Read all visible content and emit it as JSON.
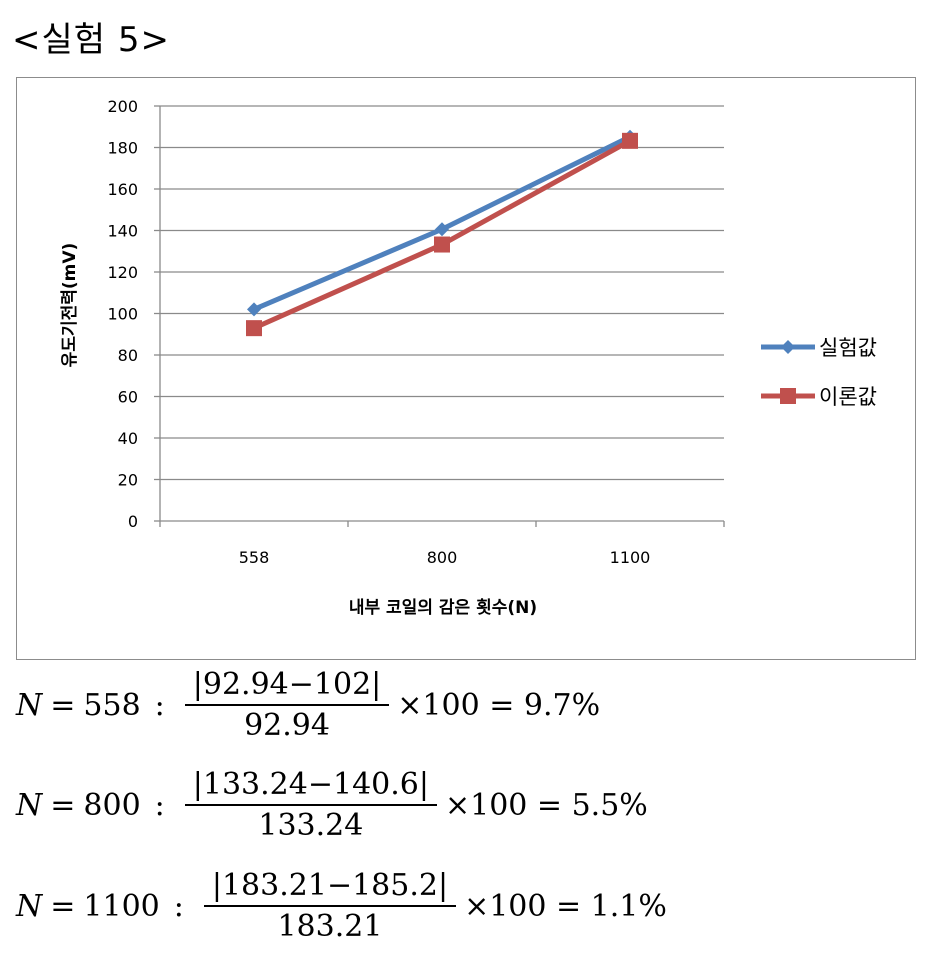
{
  "heading": "<실험 5>",
  "chart_data": {
    "type": "line",
    "categories": [
      "558",
      "800",
      "1100"
    ],
    "ylim": [
      0,
      200
    ],
    "yticks": [
      0,
      20,
      40,
      60,
      80,
      100,
      120,
      140,
      160,
      180,
      200
    ],
    "ylabel": "유도기전력(mV)",
    "xlabel": "내부 코일의 감은 횟수(N)",
    "legend_position": "right",
    "grid": true,
    "series": [
      {
        "name": "실험값",
        "values": [
          102,
          140.6,
          185.2
        ],
        "color": "#4f81bd",
        "marker": "diamond"
      },
      {
        "name": "이론값",
        "values": [
          92.94,
          133.24,
          183.21
        ],
        "color": "#c0504d",
        "marker": "square"
      }
    ]
  },
  "equations": [
    {
      "n_label": "N",
      "equals": "=",
      "n_value": "558",
      "colon": ":",
      "numerator": "|92.94−102|",
      "denominator": "92.94",
      "tail": "×100 = 9.7%"
    },
    {
      "n_label": "N",
      "equals": "=",
      "n_value": "800",
      "colon": ":",
      "numerator": "|133.24−140.6|",
      "denominator": "133.24",
      "tail": "×100 = 5.5%"
    },
    {
      "n_label": "N",
      "equals": "=",
      "n_value": "1100",
      "colon": ":",
      "numerator": "|183.21−185.2|",
      "denominator": "183.21",
      "tail": "×100 = 1.1%"
    }
  ]
}
